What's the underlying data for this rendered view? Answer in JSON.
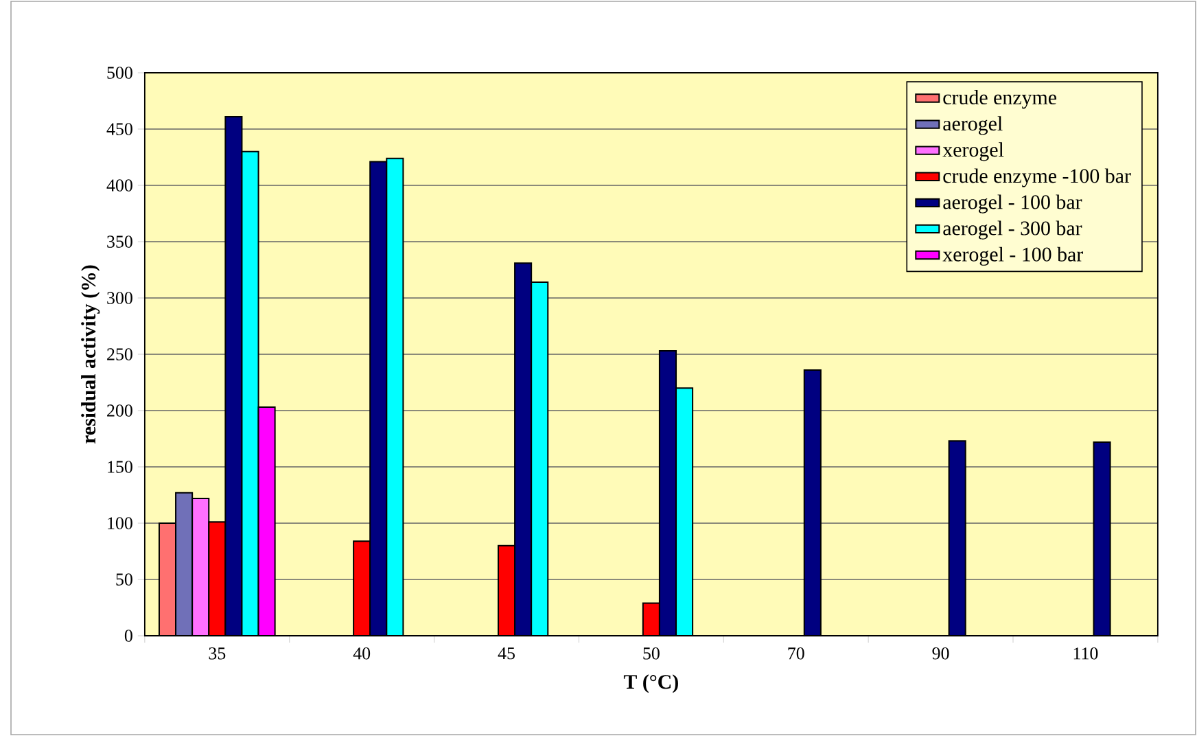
{
  "chart_data": {
    "type": "bar",
    "xlabel": "T (°C)",
    "ylabel": "residual activity (%)",
    "categories": [
      "35",
      "40",
      "45",
      "50",
      "70",
      "90",
      "110"
    ],
    "series": [
      {
        "name": "crude enzyme",
        "color": "#ff7070",
        "values": [
          100,
          null,
          null,
          null,
          null,
          null,
          null
        ]
      },
      {
        "name": "aerogel",
        "color": "#7070b8",
        "values": [
          127,
          null,
          null,
          null,
          null,
          null,
          null
        ]
      },
      {
        "name": "xerogel",
        "color": "#ff70ff",
        "values": [
          122,
          null,
          null,
          null,
          null,
          null,
          null
        ]
      },
      {
        "name": "crude enzyme -100 bar",
        "color": "#ff0000",
        "values": [
          101,
          84,
          80,
          29,
          null,
          null,
          null
        ]
      },
      {
        "name": "aerogel - 100 bar",
        "color": "#000080",
        "values": [
          461,
          421,
          331,
          253,
          236,
          173,
          172
        ]
      },
      {
        "name": "aerogel - 300 bar",
        "color": "#00ffff",
        "values": [
          430,
          424,
          314,
          220,
          null,
          null,
          null
        ]
      },
      {
        "name": "xerogel - 100 bar",
        "color": "#ff00ff",
        "values": [
          203,
          null,
          null,
          null,
          null,
          null,
          null
        ]
      }
    ],
    "ylim": [
      0,
      500
    ],
    "yticks": [
      0,
      50,
      100,
      150,
      200,
      250,
      300,
      350,
      400,
      450,
      500
    ],
    "grid": "y",
    "legend": "top right"
  }
}
